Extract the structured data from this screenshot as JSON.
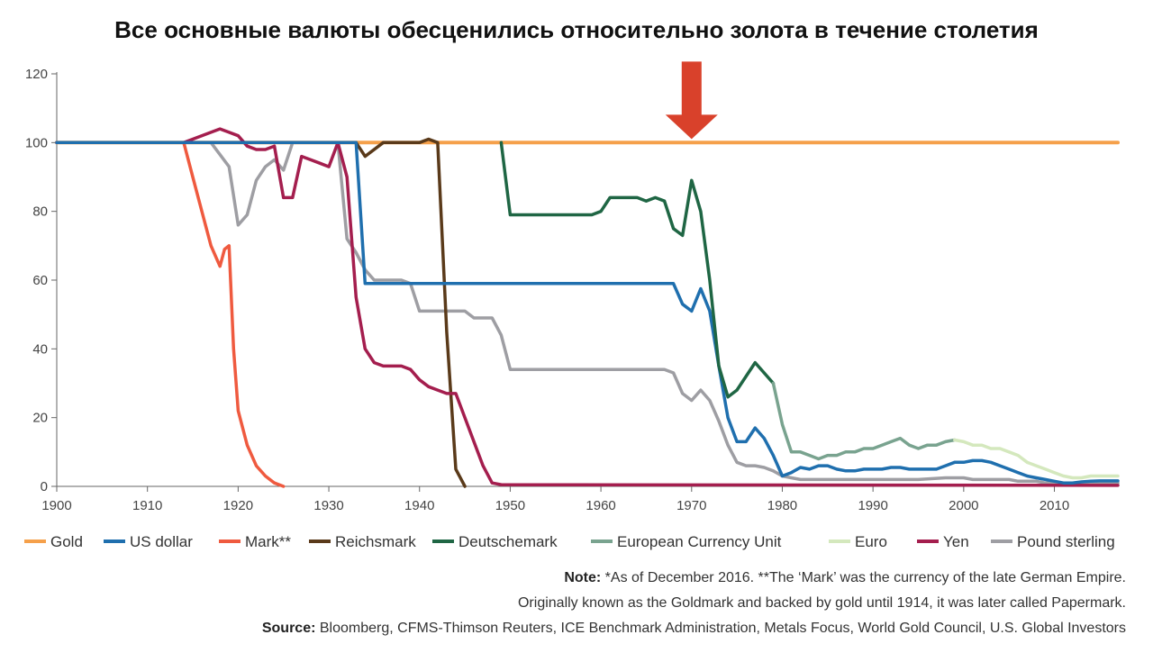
{
  "chart_data": {
    "type": "line",
    "title": "Все  основные валюты обесценились относительно золота в течение столетия",
    "xlabel": "",
    "ylabel": "",
    "xlim": [
      1900,
      2017
    ],
    "ylim": [
      0,
      120
    ],
    "x_ticks": [
      1900,
      1910,
      1920,
      1930,
      1940,
      1950,
      1960,
      1970,
      1980,
      1990,
      2000,
      2010
    ],
    "y_ticks": [
      0,
      20,
      40,
      60,
      80,
      100,
      120
    ],
    "grid": false,
    "legend_position": "bottom",
    "annotations": [
      {
        "type": "arrow",
        "x": 1970,
        "y": 100,
        "direction": "down",
        "color": "#d9412b"
      }
    ],
    "series": [
      {
        "name": "Gold",
        "color": "#f5a04a",
        "points": [
          [
            1900,
            100
          ],
          [
            2017,
            100
          ]
        ]
      },
      {
        "name": "US dollar",
        "color": "#1f6fae",
        "points": [
          [
            1900,
            100
          ],
          [
            1933,
            100
          ],
          [
            1934,
            59
          ],
          [
            1968,
            59
          ],
          [
            1969,
            53
          ],
          [
            1970,
            51
          ],
          [
            1971,
            57.5
          ],
          [
            1972,
            51
          ],
          [
            1973,
            35
          ],
          [
            1974,
            20
          ],
          [
            1975,
            13
          ],
          [
            1976,
            13
          ],
          [
            1977,
            17
          ],
          [
            1978,
            14
          ],
          [
            1979,
            9
          ],
          [
            1980,
            3
          ],
          [
            1981,
            4
          ],
          [
            1982,
            5.5
          ],
          [
            1983,
            5
          ],
          [
            1984,
            6
          ],
          [
            1985,
            6
          ],
          [
            1986,
            5
          ],
          [
            1987,
            4.5
          ],
          [
            1988,
            4.5
          ],
          [
            1989,
            5
          ],
          [
            1990,
            5
          ],
          [
            1991,
            5
          ],
          [
            1992,
            5.5
          ],
          [
            1993,
            5.5
          ],
          [
            1994,
            5
          ],
          [
            1995,
            5
          ],
          [
            1996,
            5
          ],
          [
            1997,
            5
          ],
          [
            1998,
            6
          ],
          [
            1999,
            7
          ],
          [
            2000,
            7
          ],
          [
            2001,
            7.5
          ],
          [
            2002,
            7.5
          ],
          [
            2003,
            7
          ],
          [
            2004,
            6
          ],
          [
            2005,
            5
          ],
          [
            2006,
            4
          ],
          [
            2007,
            3
          ],
          [
            2008,
            2.5
          ],
          [
            2009,
            2
          ],
          [
            2010,
            1.5
          ],
          [
            2011,
            1
          ],
          [
            2012,
            1
          ],
          [
            2013,
            1.3
          ],
          [
            2014,
            1.5
          ],
          [
            2015,
            1.6
          ],
          [
            2017,
            1.6
          ]
        ]
      },
      {
        "name": "Mark**",
        "color": "#ef5a3f",
        "points": [
          [
            1900,
            100
          ],
          [
            1914,
            100
          ],
          [
            1915,
            90
          ],
          [
            1916,
            80
          ],
          [
            1917,
            70
          ],
          [
            1918,
            64
          ],
          [
            1918.5,
            69
          ],
          [
            1919,
            70
          ],
          [
            1919.5,
            40
          ],
          [
            1920,
            22
          ],
          [
            1921,
            12
          ],
          [
            1922,
            6
          ],
          [
            1923,
            3
          ],
          [
            1924,
            1
          ],
          [
            1925,
            0
          ]
        ]
      },
      {
        "name": "Reichsmark",
        "color": "#5a3a1a",
        "points": [
          [
            1932,
            100
          ],
          [
            1933,
            100
          ],
          [
            1934,
            96
          ],
          [
            1936,
            100
          ],
          [
            1940,
            100
          ],
          [
            1941,
            101
          ],
          [
            1942,
            100
          ],
          [
            1943,
            45
          ],
          [
            1944,
            5
          ],
          [
            1945,
            0
          ]
        ]
      },
      {
        "name": "Deutschemark",
        "color": "#1f6644",
        "points": [
          [
            1949,
            100
          ],
          [
            1950,
            79
          ],
          [
            1951,
            79
          ],
          [
            1958,
            79
          ],
          [
            1959,
            79
          ],
          [
            1960,
            80
          ],
          [
            1961,
            84
          ],
          [
            1962,
            84
          ],
          [
            1963,
            84
          ],
          [
            1964,
            84
          ],
          [
            1965,
            83
          ],
          [
            1966,
            84
          ],
          [
            1967,
            83
          ],
          [
            1968,
            75
          ],
          [
            1969,
            73
          ],
          [
            1970,
            89
          ],
          [
            1971,
            80
          ],
          [
            1972,
            60
          ],
          [
            1973,
            35
          ],
          [
            1974,
            26
          ],
          [
            1975,
            28
          ],
          [
            1976,
            32
          ],
          [
            1977,
            36
          ],
          [
            1978,
            33
          ],
          [
            1979,
            30
          ]
        ]
      },
      {
        "name": "European Currency Unit",
        "color": "#79a38f",
        "points": [
          [
            1979,
            30
          ],
          [
            1980,
            18
          ],
          [
            1981,
            10
          ],
          [
            1982,
            10
          ],
          [
            1983,
            9
          ],
          [
            1984,
            8
          ],
          [
            1985,
            9
          ],
          [
            1986,
            9
          ],
          [
            1987,
            10
          ],
          [
            1988,
            10
          ],
          [
            1989,
            11
          ],
          [
            1990,
            11
          ],
          [
            1991,
            12
          ],
          [
            1992,
            13
          ],
          [
            1993,
            14
          ],
          [
            1994,
            12
          ],
          [
            1995,
            11
          ],
          [
            1996,
            12
          ],
          [
            1997,
            12
          ],
          [
            1998,
            13
          ],
          [
            1999,
            13.5
          ]
        ]
      },
      {
        "name": "Euro",
        "color": "#d4e8bd",
        "points": [
          [
            1999,
            13.5
          ],
          [
            2000,
            13
          ],
          [
            2001,
            12
          ],
          [
            2002,
            12
          ],
          [
            2003,
            11
          ],
          [
            2004,
            11
          ],
          [
            2005,
            10
          ],
          [
            2006,
            9
          ],
          [
            2007,
            7
          ],
          [
            2008,
            6
          ],
          [
            2009,
            5
          ],
          [
            2010,
            4
          ],
          [
            2011,
            3
          ],
          [
            2012,
            2.5
          ],
          [
            2013,
            2.5
          ],
          [
            2014,
            3
          ],
          [
            2015,
            3
          ],
          [
            2017,
            3
          ]
        ]
      },
      {
        "name": "Yen",
        "color": "#a41e4e",
        "points": [
          [
            1900,
            100
          ],
          [
            1914,
            100
          ],
          [
            1915,
            101
          ],
          [
            1917,
            103
          ],
          [
            1918,
            104
          ],
          [
            1919,
            103
          ],
          [
            1920,
            102
          ],
          [
            1921,
            99
          ],
          [
            1922,
            98
          ],
          [
            1923,
            98
          ],
          [
            1924,
            99
          ],
          [
            1925,
            84
          ],
          [
            1926,
            84
          ],
          [
            1927,
            96
          ],
          [
            1928,
            95
          ],
          [
            1929,
            94
          ],
          [
            1930,
            93
          ],
          [
            1931,
            100
          ],
          [
            1932,
            90
          ],
          [
            1933,
            55
          ],
          [
            1934,
            40
          ],
          [
            1935,
            36
          ],
          [
            1936,
            35
          ],
          [
            1937,
            35
          ],
          [
            1938,
            35
          ],
          [
            1939,
            34
          ],
          [
            1940,
            31
          ],
          [
            1941,
            29
          ],
          [
            1942,
            28
          ],
          [
            1943,
            27
          ],
          [
            1944,
            27
          ],
          [
            1945,
            20
          ],
          [
            1946,
            13
          ],
          [
            1947,
            6
          ],
          [
            1948,
            1
          ],
          [
            1949,
            0.5
          ],
          [
            2017,
            0.3
          ]
        ]
      },
      {
        "name": "Pound sterling",
        "color": "#9e9ea3",
        "points": [
          [
            1900,
            100
          ],
          [
            1917,
            100
          ],
          [
            1919,
            93
          ],
          [
            1920,
            76
          ],
          [
            1921,
            79
          ],
          [
            1922,
            89
          ],
          [
            1923,
            93
          ],
          [
            1924,
            95
          ],
          [
            1925,
            92
          ],
          [
            1926,
            100
          ],
          [
            1931,
            100
          ],
          [
            1932,
            72
          ],
          [
            1933,
            68
          ],
          [
            1934,
            63
          ],
          [
            1935,
            60
          ],
          [
            1936,
            60
          ],
          [
            1937,
            60
          ],
          [
            1938,
            60
          ],
          [
            1939,
            59
          ],
          [
            1940,
            51
          ],
          [
            1941,
            51
          ],
          [
            1945,
            51
          ],
          [
            1946,
            49
          ],
          [
            1948,
            49
          ],
          [
            1949,
            44
          ],
          [
            1950,
            34
          ],
          [
            1951,
            34
          ],
          [
            1967,
            34
          ],
          [
            1968,
            33
          ],
          [
            1969,
            27
          ],
          [
            1970,
            25
          ],
          [
            1971,
            28
          ],
          [
            1972,
            25
          ],
          [
            1973,
            19
          ],
          [
            1974,
            12
          ],
          [
            1975,
            7
          ],
          [
            1976,
            6
          ],
          [
            1977,
            6
          ],
          [
            1978,
            5.5
          ],
          [
            1979,
            4.5
          ],
          [
            1980,
            3
          ],
          [
            1981,
            2.5
          ],
          [
            1982,
            2
          ],
          [
            1985,
            2
          ],
          [
            1990,
            2
          ],
          [
            1995,
            2
          ],
          [
            1998,
            2.5
          ],
          [
            1999,
            2.5
          ],
          [
            2000,
            2.5
          ],
          [
            2001,
            2
          ],
          [
            2005,
            2
          ],
          [
            2006,
            1.5
          ],
          [
            2008,
            1.5
          ],
          [
            2009,
            1
          ],
          [
            2010,
            1
          ],
          [
            2017,
            1
          ]
        ]
      }
    ]
  },
  "footnote": {
    "note_label": "Note:",
    "note_text": " *As of December 2016. **The ‘Mark’ was the currency of the late German Empire.",
    "note_text2": "Originally known as the Goldmark and backed by gold until 1914, it was later called Papermark.",
    "source_label": "Source:",
    "source_text": " Bloomberg, CFMS-Thimson Reuters, ICE Benchmark Administration, Metals Focus, World Gold Council, U.S. Global Investors"
  }
}
